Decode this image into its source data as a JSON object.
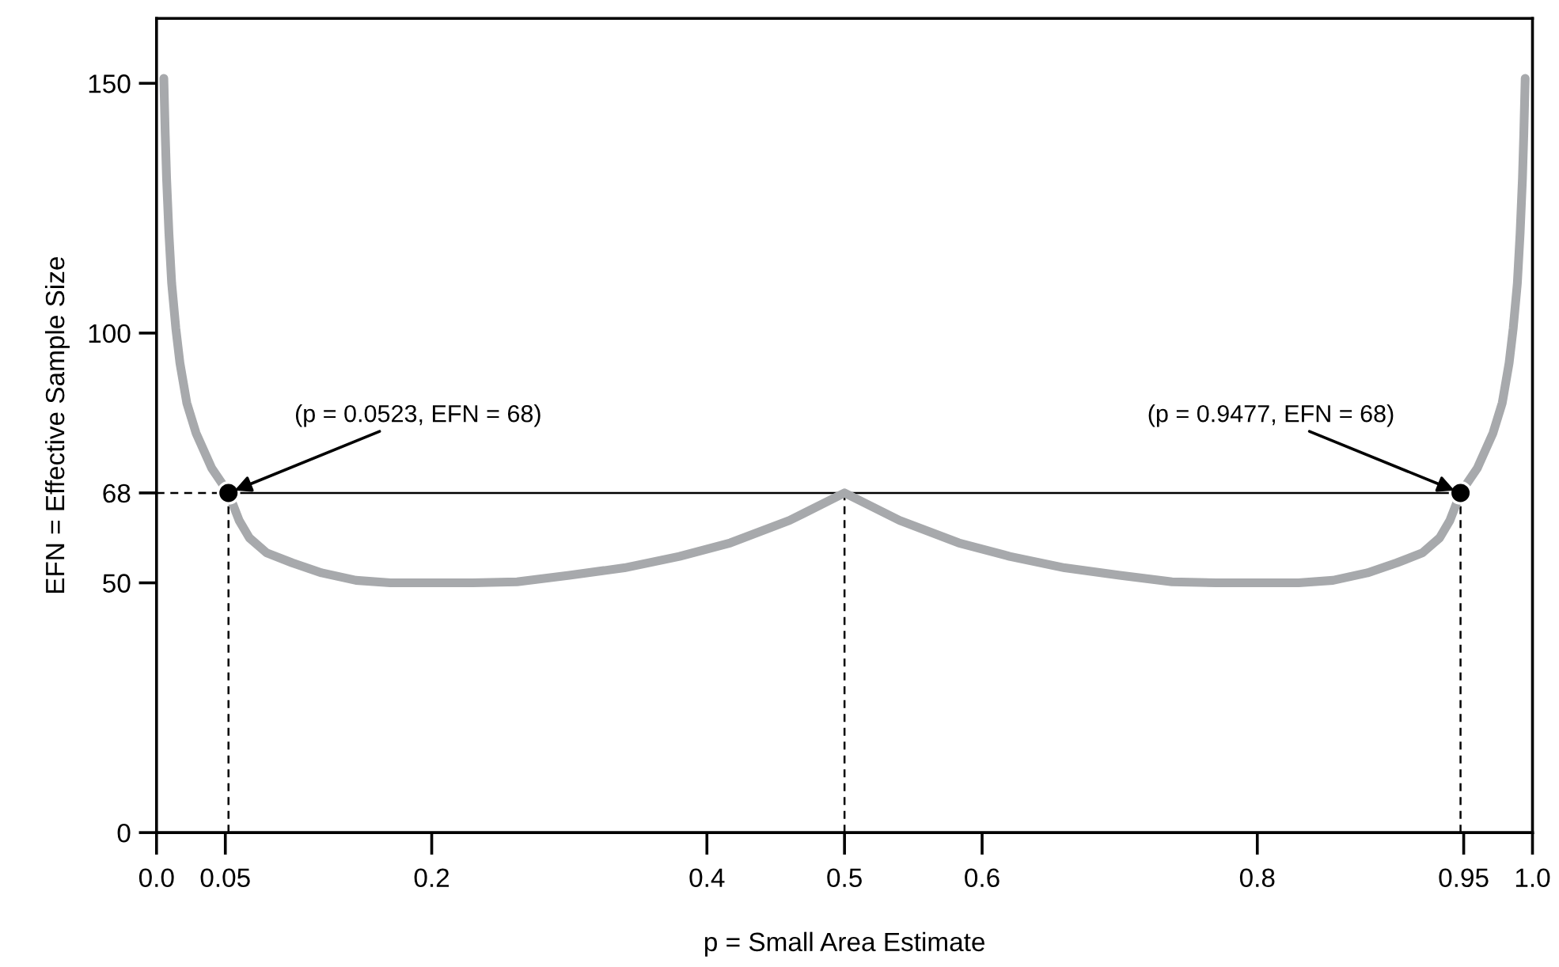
{
  "chart_data": {
    "type": "line",
    "xlabel": "p = Small Area Estimate",
    "ylabel": "EFN = Effective Sample Size",
    "xlim": [
      0,
      1
    ],
    "ylim": [
      0,
      163
    ],
    "xticks": [
      {
        "value": 0,
        "label": "0.0"
      },
      0.05,
      0.2,
      0.4,
      0.5,
      0.6,
      0.8,
      0.95,
      {
        "value": 1,
        "label": "1.0"
      }
    ],
    "yticks": [
      0,
      50,
      68,
      100,
      150
    ],
    "grid": false,
    "legend": false,
    "series": [
      {
        "type": "line",
        "color": "#a7a9ac",
        "line_style": "solid",
        "marker": "none",
        "x": [
          0.0053,
          0.0063,
          0.0073,
          0.009,
          0.011,
          0.014,
          0.017,
          0.022,
          0.0287,
          0.04,
          0.0523,
          0.06,
          0.0675,
          0.08,
          0.0986,
          0.12,
          0.145,
          0.17,
          0.2,
          0.23,
          0.262,
          0.3,
          0.34,
          0.38,
          0.417,
          0.46,
          0.5,
          0.54,
          0.583,
          0.62,
          0.66,
          0.7,
          0.738,
          0.77,
          0.8,
          0.83,
          0.855,
          0.88,
          0.9014,
          0.92,
          0.9325,
          0.94,
          0.9477,
          0.96,
          0.9713,
          0.978,
          0.983,
          0.986,
          0.989,
          0.991,
          0.9927,
          0.9937,
          0.9947
        ],
        "values": [
          151,
          140,
          131,
          120,
          110,
          101,
          94,
          86,
          80,
          73,
          68,
          62.5,
          59,
          56,
          54,
          52,
          50.5,
          50,
          50,
          50,
          50.2,
          51.5,
          53,
          55.3,
          58,
          62.5,
          68,
          62.5,
          58,
          55.3,
          53,
          51.5,
          50.2,
          50,
          50,
          50,
          50.5,
          52,
          54,
          56,
          59,
          62.5,
          68,
          73,
          80,
          86,
          94,
          101,
          110,
          120,
          131,
          140,
          151
        ]
      },
      {
        "type": "line",
        "color": "#000000",
        "line_style": "dashed",
        "marker": "none",
        "x": [
          0,
          0.0523
        ],
        "values": [
          68,
          68
        ]
      },
      {
        "type": "line",
        "color": "#000000",
        "line_style": "solid",
        "marker": "none",
        "x": [
          0.0523,
          0.9477
        ],
        "values": [
          68,
          68
        ]
      },
      {
        "type": "line",
        "color": "#000000",
        "line_style": "dashed",
        "marker": "none",
        "x": [
          0.0523,
          0.0523
        ],
        "values": [
          0,
          68
        ]
      },
      {
        "type": "line",
        "color": "#000000",
        "line_style": "dashed",
        "marker": "none",
        "x": [
          0.5,
          0.5
        ],
        "values": [
          0,
          68
        ]
      },
      {
        "type": "line",
        "color": "#000000",
        "line_style": "dashed",
        "marker": "none",
        "x": [
          0.9477,
          0.9477
        ],
        "values": [
          0,
          68
        ]
      },
      {
        "type": "scatter",
        "color": "#000000",
        "marker": "circle",
        "x": [
          0.0523,
          0.9477
        ],
        "values": [
          68,
          68
        ]
      }
    ],
    "annotations": [
      {
        "text": "(p = 0.0523, EFN = 68)",
        "x": 0.0523,
        "y": 68
      },
      {
        "text": "(p = 0.9477, EFN = 68)",
        "x": 0.9477,
        "y": 68
      }
    ]
  }
}
